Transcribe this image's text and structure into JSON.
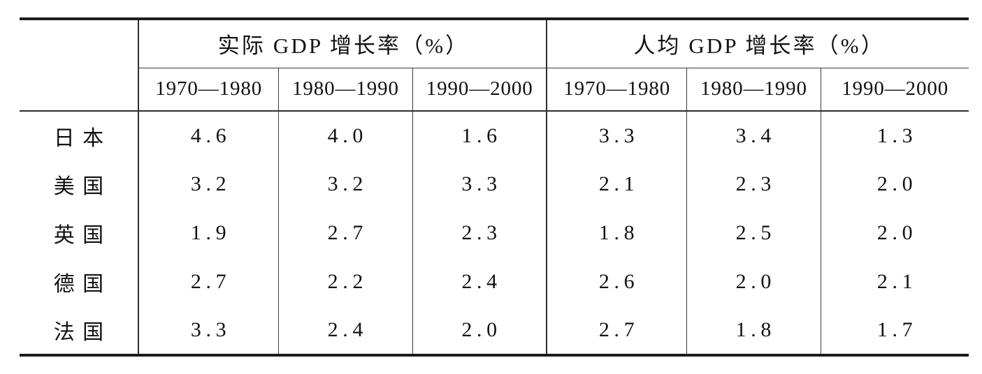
{
  "page": {
    "background": "#ffffff",
    "text_color": "#111111",
    "rule_color": "#1c1c1c"
  },
  "table": {
    "stub_header": "",
    "groups": [
      {
        "title": "实际 GDP 增长率（%）"
      },
      {
        "title": "人均 GDP 增长率（%）"
      }
    ],
    "period_headers": [
      "1970—1980",
      "1980—1990",
      "1990—2000",
      "1970—1980",
      "1980—1990",
      "1990—2000"
    ],
    "rows": [
      {
        "country": "日本",
        "values": [
          "4.6",
          "4.0",
          "1.6",
          "3.3",
          "3.4",
          "1.3"
        ]
      },
      {
        "country": "美国",
        "values": [
          "3.2",
          "3.2",
          "3.3",
          "2.1",
          "2.3",
          "2.0"
        ]
      },
      {
        "country": "英国",
        "values": [
          "1.9",
          "2.7",
          "2.3",
          "1.8",
          "2.5",
          "2.0"
        ]
      },
      {
        "country": "德国",
        "values": [
          "2.7",
          "2.2",
          "2.4",
          "2.6",
          "2.0",
          "2.1"
        ]
      },
      {
        "country": "法国",
        "values": [
          "3.3",
          "2.4",
          "2.0",
          "2.7",
          "1.8",
          "1.7"
        ]
      }
    ]
  },
  "chart_data": {
    "type": "table",
    "column_groups": [
      {
        "label": "实际 GDP 增长率（%）",
        "periods": [
          "1970—1980",
          "1980—1990",
          "1990—2000"
        ]
      },
      {
        "label": "人均 GDP 增长率（%）",
        "periods": [
          "1970—1980",
          "1980—1990",
          "1990—2000"
        ]
      }
    ],
    "rows": [
      {
        "label": "日本",
        "real_gdp_growth": [
          4.6,
          4.0,
          1.6
        ],
        "per_capita_gdp_growth": [
          3.3,
          3.4,
          1.3
        ]
      },
      {
        "label": "美国",
        "real_gdp_growth": [
          3.2,
          3.2,
          3.3
        ],
        "per_capita_gdp_growth": [
          2.1,
          2.3,
          2.0
        ]
      },
      {
        "label": "英国",
        "real_gdp_growth": [
          1.9,
          2.7,
          2.3
        ],
        "per_capita_gdp_growth": [
          1.8,
          2.5,
          2.0
        ]
      },
      {
        "label": "德国",
        "real_gdp_growth": [
          2.7,
          2.2,
          2.4
        ],
        "per_capita_gdp_growth": [
          2.6,
          2.0,
          2.1
        ]
      },
      {
        "label": "法国",
        "real_gdp_growth": [
          3.3,
          2.4,
          2.0
        ],
        "per_capita_gdp_growth": [
          2.7,
          1.8,
          1.7
        ]
      }
    ]
  }
}
